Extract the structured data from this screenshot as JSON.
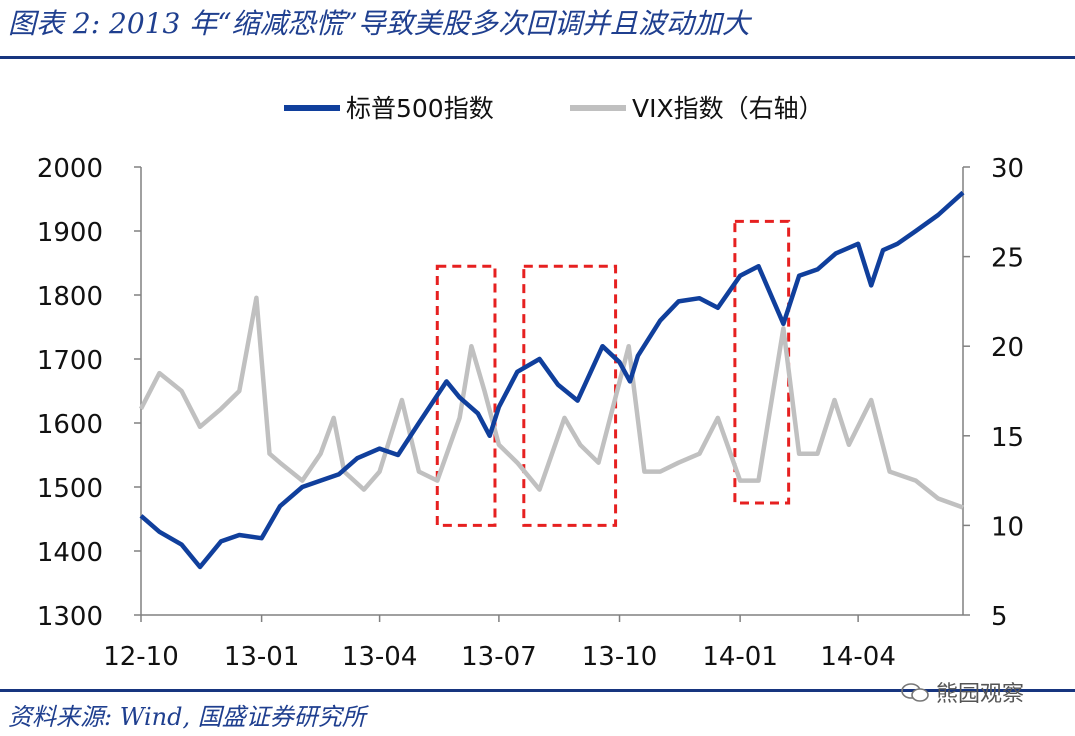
{
  "header": {
    "title": "图表 2: 2013 年“缩减恐慌”导致美股多次回调并且波动加大"
  },
  "footer": {
    "source": "资料来源: Wind, 国盛证券研究所",
    "watermark": "熊园观察"
  },
  "colors": {
    "sp500": "#103f9c",
    "vix": "#c0c0c0",
    "highlight": "#e62020",
    "title": "#1f3f8f"
  },
  "chart_data": {
    "type": "line",
    "x_tick_labels": [
      "12-10",
      "13-01",
      "13-04",
      "13-07",
      "13-10",
      "14-01",
      "14-04"
    ],
    "y_left": {
      "ylim": [
        1300,
        2000
      ],
      "ticks": [
        "1300",
        "1400",
        "1500",
        "1600",
        "1700",
        "1800",
        "1900",
        "2000"
      ]
    },
    "y_right": {
      "ylim": [
        5,
        30
      ],
      "ticks": [
        "5",
        "10",
        "15",
        "20",
        "25",
        "30"
      ]
    },
    "legend_placement": "top",
    "series": [
      {
        "name": "标普500指数",
        "axis": "left",
        "x": [
          "2012-10-01",
          "2012-10-15",
          "2012-11-01",
          "2012-11-15",
          "2012-12-01",
          "2012-12-15",
          "2013-01-01",
          "2013-01-15",
          "2013-02-01",
          "2013-02-15",
          "2013-03-01",
          "2013-03-15",
          "2013-04-01",
          "2013-04-15",
          "2013-05-01",
          "2013-05-22",
          "2013-06-01",
          "2013-06-15",
          "2013-06-24",
          "2013-07-01",
          "2013-07-15",
          "2013-08-01",
          "2013-08-15",
          "2013-08-30",
          "2013-09-18",
          "2013-10-01",
          "2013-10-09",
          "2013-10-15",
          "2013-11-01",
          "2013-11-15",
          "2013-12-01",
          "2013-12-15",
          "2014-01-01",
          "2014-01-15",
          "2014-02-03",
          "2014-02-15",
          "2014-03-01",
          "2014-03-15",
          "2014-04-01",
          "2014-04-11",
          "2014-04-20",
          "2014-05-01",
          "2014-05-15",
          "2014-06-01",
          "2014-06-20"
        ],
        "values": [
          1455,
          1430,
          1410,
          1375,
          1415,
          1425,
          1420,
          1470,
          1500,
          1510,
          1520,
          1545,
          1560,
          1550,
          1600,
          1665,
          1640,
          1615,
          1580,
          1625,
          1680,
          1700,
          1660,
          1635,
          1720,
          1695,
          1665,
          1705,
          1760,
          1790,
          1795,
          1780,
          1830,
          1845,
          1755,
          1830,
          1840,
          1865,
          1880,
          1815,
          1870,
          1880,
          1900,
          1925,
          1960
        ]
      },
      {
        "name": "VIX指数（右轴）",
        "axis": "right",
        "x": [
          "2012-10-01",
          "2012-10-15",
          "2012-11-01",
          "2012-11-15",
          "2012-12-01",
          "2012-12-15",
          "2012-12-28",
          "2013-01-07",
          "2013-01-15",
          "2013-02-01",
          "2013-02-15",
          "2013-02-25",
          "2013-03-05",
          "2013-03-20",
          "2013-04-01",
          "2013-04-18",
          "2013-05-01",
          "2013-05-15",
          "2013-06-01",
          "2013-06-10",
          "2013-06-20",
          "2013-07-01",
          "2013-07-15",
          "2013-08-01",
          "2013-08-20",
          "2013-09-01",
          "2013-09-15",
          "2013-10-01",
          "2013-10-08",
          "2013-10-20",
          "2013-11-01",
          "2013-11-15",
          "2013-12-01",
          "2013-12-15",
          "2014-01-01",
          "2014-01-15",
          "2014-02-03",
          "2014-02-15",
          "2014-03-01",
          "2014-03-14",
          "2014-03-25",
          "2014-04-11",
          "2014-04-25",
          "2014-05-15",
          "2014-06-01",
          "2014-06-20"
        ],
        "values": [
          16.5,
          18.5,
          17.5,
          15.5,
          16.5,
          17.5,
          22.7,
          14,
          13.5,
          12.5,
          14,
          16,
          13,
          12,
          13,
          17,
          13,
          12.5,
          16,
          20,
          17.5,
          14.5,
          13.5,
          12,
          16,
          14.5,
          13.5,
          18,
          20,
          13,
          13,
          13.5,
          14,
          16,
          12.5,
          12.5,
          21,
          14,
          14,
          17,
          14.5,
          17,
          13,
          12.5,
          11.5,
          11
        ]
      }
    ]
  }
}
